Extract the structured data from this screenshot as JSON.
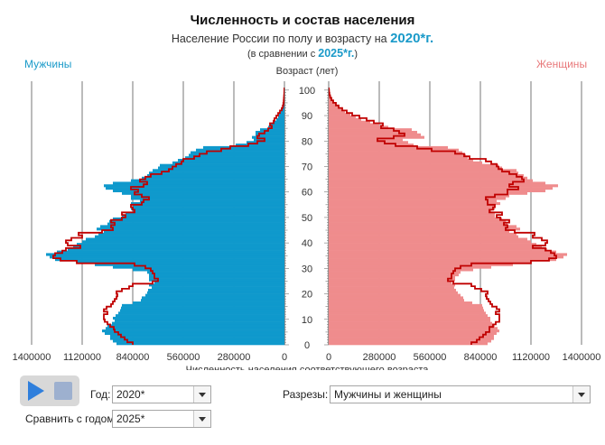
{
  "header": {
    "title": "Численность и состав населения",
    "subtitle_prefix": "Население России по полу и возрасту на",
    "subtitle_year": "2020*г.",
    "compare_prefix": "(в сравнении с",
    "compare_year": "2025*г.",
    "compare_suffix": ")"
  },
  "labels": {
    "men": "Мужчины",
    "women": "Женщины"
  },
  "colors": {
    "men": "#0f99cc",
    "women": "#ef8c8d",
    "compare_outline": "#c00000",
    "grid": "#555555"
  },
  "controls": {
    "year_label": "Год:",
    "year_value": "2020*",
    "compare_label": "Сравнить с годом:",
    "compare_value": "2025*",
    "cuts_label": "Разрезы:",
    "cuts_value": "Мужчины и женщины",
    "play_icon": "play-icon",
    "stop_icon": "stop-icon"
  },
  "chart_data": {
    "type": "bar",
    "subtype": "population-pyramid",
    "title": "Численность и состав населения",
    "ylabel": "Возраст (лет)",
    "xlabel": "Численность населения соответствующего возраста",
    "y_ticks": [
      0,
      10,
      20,
      30,
      40,
      50,
      60,
      70,
      80,
      90,
      100
    ],
    "x_ticks_left": [
      "1400000",
      "1120000",
      "840000",
      "560000",
      "280000",
      "0"
    ],
    "x_ticks_right": [
      "0",
      "280000",
      "560000",
      "840000",
      "1120000",
      "1400000"
    ],
    "xlim": [
      0,
      1400000
    ],
    "ylim": [
      0,
      100
    ],
    "series": [
      {
        "name": "Мужчины",
        "ages": "0-100",
        "values": [
          930000,
          950000,
          965000,
          965000,
          995000,
          1010000,
          990000,
          980000,
          955000,
          940000,
          950000,
          935000,
          920000,
          910000,
          905000,
          900000,
          840000,
          795000,
          790000,
          770000,
          760000,
          755000,
          735000,
          750000,
          720000,
          750000,
          750000,
          750000,
          760000,
          840000,
          950000,
          1050000,
          1150000,
          1270000,
          1300000,
          1320000,
          1260000,
          1200000,
          1170000,
          1150000,
          1120000,
          1100000,
          1050000,
          1030000,
          1000000,
          1040000,
          1020000,
          980000,
          970000,
          950000,
          900000,
          880000,
          840000,
          850000,
          840000,
          850000,
          800000,
          850000,
          850000,
          900000,
          950000,
          990000,
          1000000,
          950000,
          850000,
          790000,
          760000,
          750000,
          730000,
          700000,
          690000,
          620000,
          590000,
          550000,
          530000,
          520000,
          490000,
          450000,
          270000,
          210000,
          170000,
          180000,
          160000,
          160000,
          135000,
          90000,
          80000,
          60000,
          45000,
          35000,
          30000,
          20000,
          12000,
          9000,
          6000,
          4000,
          3000,
          2000,
          1500,
          1000,
          500
        ]
      },
      {
        "name": "Женщины",
        "ages": "0-100",
        "values": [
          880000,
          900000,
          915000,
          915000,
          930000,
          945000,
          935000,
          920000,
          905000,
          895000,
          895000,
          880000,
          870000,
          860000,
          855000,
          850000,
          795000,
          750000,
          745000,
          730000,
          715000,
          705000,
          695000,
          700000,
          680000,
          700000,
          700000,
          720000,
          730000,
          800000,
          900000,
          1020000,
          1120000,
          1260000,
          1300000,
          1320000,
          1260000,
          1210000,
          1180000,
          1150000,
          1120000,
          1100000,
          1050000,
          1040000,
          1000000,
          1060000,
          1040000,
          990000,
          980000,
          960000,
          920000,
          920000,
          900000,
          920000,
          920000,
          950000,
          930000,
          980000,
          1000000,
          1100000,
          1200000,
          1240000,
          1270000,
          1200000,
          1130000,
          1100000,
          1080000,
          1050000,
          1040000,
          960000,
          940000,
          850000,
          800000,
          770000,
          760000,
          740000,
          720000,
          660000,
          470000,
          440000,
          410000,
          530000,
          510000,
          490000,
          460000,
          330000,
          280000,
          230000,
          180000,
          150000,
          120000,
          90000,
          70000,
          55000,
          40000,
          25000,
          15000,
          9000,
          5000,
          3000,
          1500
        ]
      },
      {
        "name": "Мужчины (2025*)",
        "ages": "0-100",
        "values": [
          840000,
          870000,
          885000,
          905000,
          920000,
          940000,
          945000,
          965000,
          980000,
          995000,
          1000000,
          1000000,
          980000,
          1000000,
          985000,
          960000,
          950000,
          940000,
          930000,
          925000,
          930000,
          900000,
          860000,
          840000,
          730000,
          700000,
          720000,
          720000,
          730000,
          740000,
          770000,
          830000,
          1150000,
          1240000,
          1280000,
          1270000,
          1230000,
          1210000,
          1130000,
          1200000,
          1210000,
          1180000,
          1120000,
          1140000,
          1010000,
          950000,
          960000,
          940000,
          960000,
          900000,
          880000,
          900000,
          830000,
          840000,
          850000,
          790000,
          780000,
          750000,
          790000,
          830000,
          810000,
          850000,
          780000,
          760000,
          800000,
          770000,
          740000,
          680000,
          640000,
          620000,
          600000,
          570000,
          560000,
          500000,
          470000,
          430000,
          350000,
          300000,
          200000,
          150000,
          110000,
          150000,
          140000,
          110000,
          90000,
          70000,
          80000,
          60000,
          55000,
          45000,
          35000,
          25000,
          15000,
          9000,
          6000,
          4000,
          3000,
          2000,
          1200,
          700,
          300
        ]
      },
      {
        "name": "Женщины (2025*)",
        "ages": "0-100",
        "values": [
          790000,
          820000,
          835000,
          855000,
          870000,
          890000,
          890000,
          910000,
          925000,
          945000,
          945000,
          945000,
          925000,
          945000,
          930000,
          905000,
          895000,
          885000,
          875000,
          870000,
          880000,
          845000,
          810000,
          790000,
          690000,
          660000,
          680000,
          680000,
          690000,
          700000,
          730000,
          790000,
          1120000,
          1220000,
          1260000,
          1250000,
          1230000,
          1200000,
          1130000,
          1200000,
          1210000,
          1180000,
          1130000,
          1140000,
          1030000,
          980000,
          990000,
          970000,
          1000000,
          950000,
          930000,
          960000,
          890000,
          910000,
          920000,
          880000,
          880000,
          870000,
          920000,
          990000,
          990000,
          1050000,
          1000000,
          1020000,
          1080000,
          1070000,
          1040000,
          1000000,
          960000,
          940000,
          930000,
          900000,
          870000,
          780000,
          750000,
          700000,
          570000,
          490000,
          370000,
          310000,
          270000,
          360000,
          420000,
          390000,
          360000,
          290000,
          300000,
          250000,
          210000,
          170000,
          130000,
          100000,
          75000,
          55000,
          40000,
          25000,
          15000,
          8000,
          4000,
          2000,
          1000
        ]
      }
    ],
    "grid": true,
    "legend": "none"
  }
}
